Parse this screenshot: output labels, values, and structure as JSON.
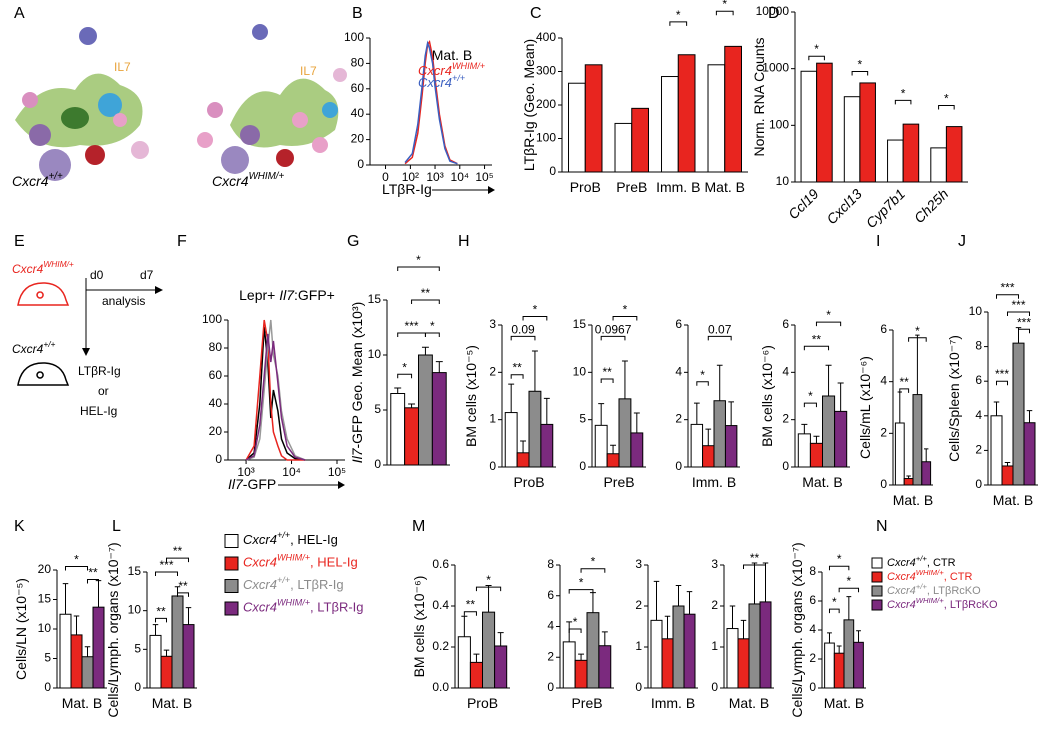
{
  "figure": {
    "panel_A": {
      "label": "A",
      "cytokine": [
        "IL7",
        "IL7"
      ],
      "genotypes": [
        "Cxcr4+/+",
        "Cxcr4WHIM/+"
      ]
    },
    "panel_E": {
      "label": "E",
      "genotypes": [
        "Cxcr4WHIM/+",
        "Cxcr4+/+"
      ],
      "days": [
        "d0",
        "d7"
      ],
      "step": "analysis",
      "treatments": [
        "LTβR-Ig",
        "or",
        "HEL-Ig"
      ]
    }
  },
  "chart_data": [
    {
      "type": "line",
      "label": "B",
      "title": "Mat. B",
      "xlabel": "LTβR-Ig",
      "xscale": "biexponential",
      "xlim": [
        -40,
        200000
      ],
      "xticks": [
        0,
        {
          "value": 100,
          "label": "10²"
        },
        {
          "value": 1000,
          "label": "10³"
        },
        {
          "value": 10000,
          "label": "10⁴"
        },
        {
          "value": 100000,
          "label": "10⁵"
        }
      ],
      "ylim": [
        0,
        100
      ],
      "yticks": [
        0,
        20,
        40,
        60,
        80,
        100
      ],
      "x": [
        60,
        120,
        200,
        300,
        400,
        500,
        600,
        800,
        1000,
        1500,
        2500,
        4000,
        8000
      ],
      "series": [
        {
          "name": "Cxcr4WHIM/+",
          "color": "#e8251f",
          "values": [
            1,
            6,
            25,
            55,
            80,
            95,
            97,
            85,
            68,
            40,
            15,
            4,
            1
          ]
        },
        {
          "name": "Cxcr4+/+",
          "color": "#3b5fc0",
          "values": [
            2,
            9,
            32,
            62,
            86,
            96,
            92,
            80,
            62,
            36,
            13,
            3,
            1
          ]
        }
      ]
    },
    {
      "type": "bar",
      "label": "C",
      "ylabel": "LTβR-Ig (Geo. Mean)",
      "ylim": [
        0,
        400
      ],
      "yticks": [
        0,
        100,
        200,
        300,
        400
      ],
      "categories": [
        "ProB",
        "PreB",
        "Imm. B",
        "Mat. B"
      ],
      "series": [
        {
          "color": "#ffffff",
          "values": [
            265,
            145,
            285,
            320
          ]
        },
        {
          "color": "#e8251f",
          "values": [
            320,
            190,
            350,
            375
          ]
        }
      ],
      "annotations": [
        "*",
        "*"
      ]
    },
    {
      "type": "bar",
      "label": "D",
      "ylabel": "Norm. RNA Counts",
      "yscale": "log",
      "ylim": [
        10,
        10000
      ],
      "yticks": [
        10,
        100,
        1000,
        10000
      ],
      "categories": [
        "Ccl19",
        "Cxcl13",
        "Cyp7b1",
        "Ch25h"
      ],
      "series": [
        {
          "color": "#ffffff",
          "values": [
            900,
            320,
            55,
            40
          ]
        },
        {
          "color": "#e8251f",
          "values": [
            1250,
            560,
            105,
            95
          ]
        }
      ],
      "annotations": [
        "*",
        "*",
        "*",
        "*"
      ]
    },
    {
      "type": "line",
      "label": "F",
      "title": "Lepr+ Il7:GFP+",
      "xlabel": "Il7-GFP",
      "xscale": "biexponential",
      "xlim": [
        400,
        150000
      ],
      "xticks": [
        {
          "value": 1000,
          "label": "10³"
        },
        {
          "value": 10000,
          "label": "10⁴"
        },
        {
          "value": 100000,
          "label": "10⁵"
        }
      ],
      "ylim": [
        0,
        100
      ],
      "yticks": [
        0,
        20,
        40,
        60,
        80,
        100
      ],
      "x": [
        1000,
        1500,
        2000,
        2500,
        3000,
        3500,
        4000,
        5000,
        6000,
        8000,
        12000,
        20000
      ],
      "series": [
        {
          "color": "#000000",
          "values": [
            0,
            5,
            40,
            95,
            70,
            30,
            50,
            35,
            15,
            5,
            1,
            0
          ]
        },
        {
          "color": "#e8251f",
          "values": [
            0,
            10,
            60,
            100,
            85,
            40,
            20,
            10,
            3,
            0,
            0,
            0
          ]
        },
        {
          "color": "#999999",
          "values": [
            0,
            2,
            15,
            50,
            80,
            100,
            75,
            60,
            35,
            15,
            3,
            0
          ]
        },
        {
          "color": "#7b2a7e",
          "values": [
            0,
            3,
            25,
            60,
            90,
            70,
            85,
            55,
            30,
            10,
            2,
            0
          ]
        }
      ]
    },
    {
      "type": "bar",
      "label": "G",
      "ylabel": "Il7-GFP Geo. Mean (x10³)",
      "ylim": [
        0,
        15
      ],
      "yticks": [
        0,
        5,
        10,
        15
      ],
      "categories": [
        null
      ],
      "series": [
        {
          "color": "#ffffff",
          "values": [
            6.5
          ],
          "errors": [
            0.5
          ]
        },
        {
          "color": "#e8251f",
          "values": [
            5.2
          ],
          "errors": [
            0.35
          ]
        },
        {
          "color": "#8c8c8c",
          "values": [
            10
          ],
          "errors": [
            0.7
          ]
        },
        {
          "color": "#7b2a7e",
          "values": [
            8.4
          ],
          "errors": [
            1
          ]
        }
      ],
      "annotations": [
        "*",
        "**",
        "***",
        "*",
        "*"
      ]
    },
    {
      "type": "bar",
      "label": "H",
      "ylabel": "BM cells (x10⁻⁵)",
      "ylim": [
        0,
        3
      ],
      "yticks": [
        0,
        1,
        2,
        3
      ],
      "categories": [
        "ProB"
      ],
      "series": [
        {
          "color": "#ffffff",
          "values": [
            1.15
          ],
          "errors": [
            0.6
          ]
        },
        {
          "color": "#e8251f",
          "values": [
            0.3
          ],
          "errors": [
            0.25
          ]
        },
        {
          "color": "#8c8c8c",
          "values": [
            1.6
          ],
          "errors": [
            0.85
          ]
        },
        {
          "color": "#7b2a7e",
          "values": [
            0.9
          ],
          "errors": [
            0.55
          ]
        }
      ],
      "annotations": [
        "0.09",
        "*",
        "**"
      ]
    },
    {
      "type": "bar",
      "ylim": [
        0,
        15
      ],
      "yticks": [
        0,
        5,
        10,
        15
      ],
      "categories": [
        "PreB"
      ],
      "series": [
        {
          "color": "#ffffff",
          "values": [
            4.4
          ],
          "errors": [
            2.3
          ]
        },
        {
          "color": "#e8251f",
          "values": [
            1.4
          ],
          "errors": [
            0.9
          ]
        },
        {
          "color": "#8c8c8c",
          "values": [
            7.2
          ],
          "errors": [
            4
          ]
        },
        {
          "color": "#7b2a7e",
          "values": [
            3.6
          ],
          "errors": [
            2.1
          ]
        }
      ],
      "annotations": [
        "0.0967",
        "*",
        "**"
      ]
    },
    {
      "type": "bar",
      "ylim": [
        0,
        6
      ],
      "yticks": [
        0,
        2,
        4,
        6
      ],
      "categories": [
        "Imm. B"
      ],
      "series": [
        {
          "color": "#ffffff",
          "values": [
            1.8
          ],
          "errors": [
            0.9
          ]
        },
        {
          "color": "#e8251f",
          "values": [
            0.9
          ],
          "errors": [
            0.7
          ]
        },
        {
          "color": "#8c8c8c",
          "values": [
            2.8
          ],
          "errors": [
            1.5
          ]
        },
        {
          "color": "#7b2a7e",
          "values": [
            1.75
          ],
          "errors": [
            1
          ]
        }
      ],
      "annotations": [
        "*",
        "0.07"
      ]
    },
    {
      "type": "bar",
      "ylabel": "BM cells (x10⁻⁶)",
      "ylim": [
        0,
        6
      ],
      "yticks": [
        0,
        2,
        4,
        6
      ],
      "categories": [
        "Mat. B"
      ],
      "series": [
        {
          "color": "#ffffff",
          "values": [
            1.4
          ],
          "errors": [
            0.4
          ]
        },
        {
          "color": "#e8251f",
          "values": [
            1
          ],
          "errors": [
            0.3
          ]
        },
        {
          "color": "#8c8c8c",
          "values": [
            3
          ],
          "errors": [
            1.3
          ]
        },
        {
          "color": "#7b2a7e",
          "values": [
            2.35
          ],
          "errors": [
            1.2
          ]
        }
      ],
      "annotations": [
        "*",
        "**",
        "*"
      ]
    },
    {
      "type": "bar",
      "label": "I",
      "ylabel": "Cells/mL (x10⁻⁶)",
      "ylim": [
        0,
        6
      ],
      "yticks": [
        0,
        2,
        4,
        6
      ],
      "categories": [
        "Mat. B"
      ],
      "series": [
        {
          "color": "#ffffff",
          "values": [
            2.4
          ],
          "errors": [
            1.2
          ]
        },
        {
          "color": "#e8251f",
          "values": [
            0.25
          ],
          "errors": [
            0.1
          ]
        },
        {
          "color": "#8c8c8c",
          "values": [
            3.5
          ],
          "errors": [
            2.3
          ]
        },
        {
          "color": "#7b2a7e",
          "values": [
            0.9
          ],
          "errors": [
            0.5
          ]
        }
      ],
      "annotations": [
        "**",
        "*"
      ]
    },
    {
      "type": "bar",
      "label": "J",
      "ylabel": "Cells/Spleen (x10⁻⁷)",
      "ylim": [
        0,
        10
      ],
      "yticks": [
        0,
        2,
        4,
        6,
        8,
        10
      ],
      "categories": [
        "Mat. B"
      ],
      "series": [
        {
          "color": "#ffffff",
          "values": [
            4
          ],
          "errors": [
            0.8
          ]
        },
        {
          "color": "#e8251f",
          "values": [
            1.1
          ],
          "errors": [
            0.2
          ]
        },
        {
          "color": "#8c8c8c",
          "values": [
            8.2
          ],
          "errors": [
            0.9
          ]
        },
        {
          "color": "#7b2a7e",
          "values": [
            3.6
          ],
          "errors": [
            0.7
          ]
        }
      ],
      "annotations": [
        "***",
        "***",
        "***",
        "***"
      ]
    },
    {
      "type": "bar",
      "label": "K",
      "ylabel": "Cells/LN (x10⁻⁵)",
      "ylim": [
        0,
        20
      ],
      "yticks": [
        0,
        5,
        10,
        15,
        20
      ],
      "categories": [
        "Mat. B"
      ],
      "series": [
        {
          "color": "#ffffff",
          "values": [
            12.5
          ],
          "errors": [
            5.2
          ]
        },
        {
          "color": "#e8251f",
          "values": [
            9
          ],
          "errors": [
            3.2
          ]
        },
        {
          "color": "#8c8c8c",
          "values": [
            5.3
          ],
          "errors": [
            1.7
          ]
        },
        {
          "color": "#7b2a7e",
          "values": [
            13.7
          ],
          "errors": [
            4.5
          ]
        }
      ],
      "annotations": [
        "*",
        "**"
      ]
    },
    {
      "type": "bar",
      "label": "L",
      "ylabel": "Cells/Lymph. organs (x10⁻⁷)",
      "ylim": [
        0,
        15
      ],
      "yticks": [
        0,
        5,
        10,
        15
      ],
      "categories": [
        "Mat. B"
      ],
      "series": [
        {
          "name": "Cxcr4+/+, HEL-Ig",
          "color": "#ffffff",
          "values": [
            6.8
          ],
          "errors": [
            1.4
          ]
        },
        {
          "name": "Cxcr4WHIM/+, HEL-Ig",
          "color": "#e8251f",
          "values": [
            4.1
          ],
          "errors": [
            0.8
          ]
        },
        {
          "name": "Cxcr4+/+, LTβR-Ig",
          "color": "#8c8c8c",
          "values": [
            11.9
          ],
          "errors": [
            1.2
          ]
        },
        {
          "name": "Cxcr4WHIM/+, LTβR-Ig",
          "color": "#7b2a7e",
          "values": [
            8.2
          ],
          "errors": [
            2.2
          ]
        }
      ],
      "annotations": [
        "**",
        "***",
        "**",
        "**"
      ]
    },
    {
      "type": "bar",
      "label": "M",
      "ylabel": "BM cells (x10⁻⁶)",
      "ylim": [
        0,
        0.6
      ],
      "yticks": [
        {
          "value": 0,
          "label": "0.0"
        },
        0.2,
        0.4,
        0.6
      ],
      "categories": [
        "ProB"
      ],
      "series": [
        {
          "color": "#ffffff",
          "values": [
            0.25
          ],
          "errors": [
            0.1
          ]
        },
        {
          "color": "#e8251f",
          "values": [
            0.125
          ],
          "errors": [
            0.04
          ]
        },
        {
          "color": "#8c8c8c",
          "values": [
            0.37
          ],
          "errors": [
            0.13
          ]
        },
        {
          "color": "#7b2a7e",
          "values": [
            0.205
          ],
          "errors": [
            0.065
          ]
        }
      ],
      "annotations": [
        "**",
        "*"
      ]
    },
    {
      "type": "bar",
      "ylim": [
        0,
        8
      ],
      "yticks": [
        0,
        2,
        4,
        6,
        8
      ],
      "categories": [
        "PreB"
      ],
      "series": [
        {
          "color": "#ffffff",
          "values": [
            3
          ],
          "errors": [
            1.3
          ]
        },
        {
          "color": "#e8251f",
          "values": [
            1.8
          ],
          "errors": [
            0.4
          ]
        },
        {
          "color": "#8c8c8c",
          "values": [
            4.9
          ],
          "errors": [
            1.3
          ]
        },
        {
          "color": "#7b2a7e",
          "values": [
            2.75
          ],
          "errors": [
            0.9
          ]
        }
      ],
      "annotations": [
        "*",
        "*",
        "*"
      ]
    },
    {
      "type": "bar",
      "ylim": [
        0,
        3
      ],
      "yticks": [
        0,
        1,
        2,
        3
      ],
      "categories": [
        "Imm. B"
      ],
      "series": [
        {
          "color": "#ffffff",
          "values": [
            1.65
          ],
          "errors": [
            0.95
          ]
        },
        {
          "color": "#e8251f",
          "values": [
            1.2
          ],
          "errors": [
            0.55
          ]
        },
        {
          "color": "#8c8c8c",
          "values": [
            2
          ],
          "errors": [
            0.5
          ]
        },
        {
          "color": "#7b2a7e",
          "values": [
            1.8
          ],
          "errors": [
            0.55
          ]
        }
      ]
    },
    {
      "type": "bar",
      "ylim": [
        0,
        3
      ],
      "yticks": [
        0,
        1,
        2,
        3
      ],
      "categories": [
        "Mat. B"
      ],
      "series": [
        {
          "color": "#ffffff",
          "values": [
            1.45
          ],
          "errors": [
            0.55
          ]
        },
        {
          "color": "#e8251f",
          "values": [
            1.2
          ],
          "errors": [
            0.45
          ]
        },
        {
          "color": "#8c8c8c",
          "values": [
            2.05
          ],
          "errors": [
            1
          ]
        },
        {
          "color": "#7b2a7e",
          "values": [
            2.1
          ],
          "errors": [
            0.95
          ]
        }
      ],
      "annotations": [
        "**"
      ]
    },
    {
      "type": "bar",
      "label": "N",
      "ylabel": "Cells/Lymph. organs (x10⁻⁷)",
      "ylim": [
        0,
        8
      ],
      "yticks": [
        0,
        2,
        4,
        6,
        8
      ],
      "categories": [
        "Mat. B"
      ],
      "series": [
        {
          "name": "Cxcr4+/+, CTR",
          "color": "#ffffff",
          "values": [
            3.1
          ],
          "errors": [
            0.7
          ]
        },
        {
          "name": "Cxcr4WHIM/+, CTR",
          "color": "#e8251f",
          "values": [
            2.4
          ],
          "errors": [
            0.5
          ]
        },
        {
          "name": "Cxcr4+/+, LTβRcKO",
          "color": "#8c8c8c",
          "values": [
            4.7
          ],
          "errors": [
            1.6
          ]
        },
        {
          "name": "Cxcr4WHIM/+, LTβRcKO",
          "color": "#7b2a7e",
          "values": [
            3.15
          ],
          "errors": [
            0.8
          ]
        }
      ],
      "annotations": [
        "*",
        "*",
        "*"
      ]
    }
  ]
}
